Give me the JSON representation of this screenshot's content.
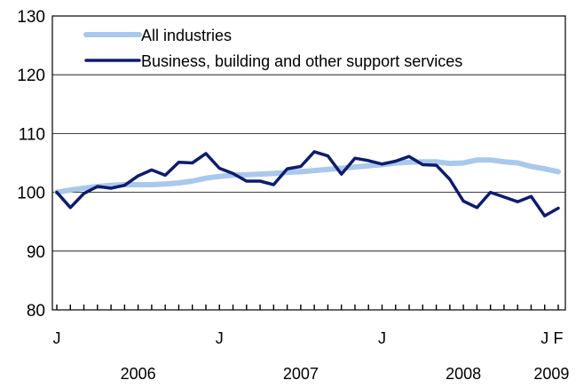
{
  "chart_data": {
    "type": "line",
    "ylim": [
      80,
      130
    ],
    "y_ticks": [
      80,
      90,
      100,
      110,
      120,
      130
    ],
    "grid": true,
    "legend_position": "top-left",
    "month_labels": [
      {
        "index": 0,
        "text": "J"
      },
      {
        "index": 12,
        "text": "J"
      },
      {
        "index": 24,
        "text": "J"
      },
      {
        "index": 36,
        "text": "J"
      },
      {
        "index": 37,
        "text": "F"
      }
    ],
    "year_labels": [
      {
        "center": 6,
        "text": "2006"
      },
      {
        "center": 18,
        "text": "2007"
      },
      {
        "center": 30,
        "text": "2008"
      },
      {
        "center": 36.5,
        "text": "2009"
      }
    ],
    "x": [
      "Jan 2006",
      "Feb 2006",
      "Mar 2006",
      "Apr 2006",
      "May 2006",
      "Jun 2006",
      "Jul 2006",
      "Aug 2006",
      "Sep 2006",
      "Oct 2006",
      "Nov 2006",
      "Dec 2006",
      "Jan 2007",
      "Feb 2007",
      "Mar 2007",
      "Apr 2007",
      "May 2007",
      "Jun 2007",
      "Jul 2007",
      "Aug 2007",
      "Sep 2007",
      "Oct 2007",
      "Nov 2007",
      "Dec 2007",
      "Jan 2008",
      "Feb 2008",
      "Mar 2008",
      "Apr 2008",
      "May 2008",
      "Jun 2008",
      "Jul 2008",
      "Aug 2008",
      "Sep 2008",
      "Oct 2008",
      "Nov 2008",
      "Dec 2008",
      "Jan 2009",
      "Feb 2009"
    ],
    "series": [
      {
        "name": "All industries",
        "color": "#a9c8ec",
        "values": [
          100.0,
          100.4,
          100.7,
          101.0,
          101.2,
          101.3,
          101.3,
          101.3,
          101.4,
          101.6,
          101.9,
          102.4,
          102.7,
          102.9,
          103.0,
          103.1,
          103.2,
          103.4,
          103.5,
          103.7,
          103.9,
          104.1,
          104.3,
          104.5,
          104.7,
          105.0,
          105.1,
          105.2,
          105.2,
          104.9,
          105.0,
          105.5,
          105.5,
          105.2,
          105.0,
          104.4,
          104.0,
          103.5
        ]
      },
      {
        "name": "Business, building and other support services",
        "color": "#0d1c6e",
        "values": [
          100.0,
          97.4,
          99.8,
          101.0,
          100.7,
          101.2,
          102.8,
          103.8,
          102.9,
          105.1,
          105.0,
          106.6,
          104.1,
          103.2,
          101.9,
          101.9,
          101.3,
          104.0,
          104.4,
          106.9,
          106.2,
          103.1,
          105.8,
          105.4,
          104.8,
          105.3,
          106.1,
          104.7,
          104.6,
          102.2,
          98.5,
          97.4,
          100.0,
          99.2,
          98.4,
          99.3,
          96.0,
          97.3
        ]
      }
    ]
  }
}
